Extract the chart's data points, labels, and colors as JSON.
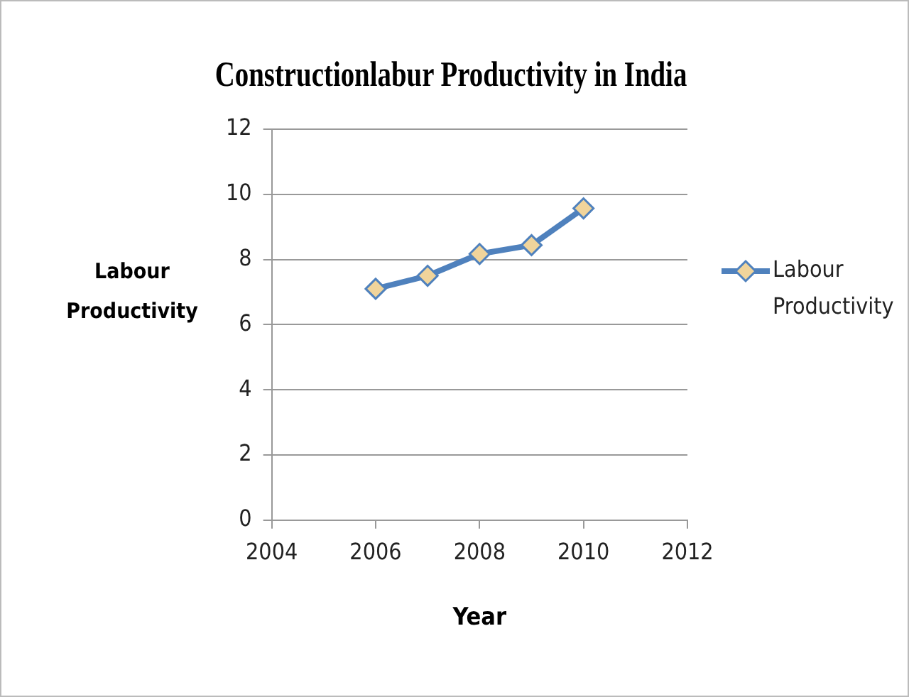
{
  "chart_data": {
    "type": "line",
    "title": "Constructionlabur Productivity in India",
    "xlabel": "Year",
    "ylabel": "Labour Productivity",
    "x": [
      2006,
      2007,
      2008,
      2009,
      2010
    ],
    "series": [
      {
        "name": "Labour Productivity",
        "color": "#4f81bd",
        "values": [
          7.1,
          7.5,
          8.17,
          8.44,
          9.57
        ]
      }
    ],
    "xlim": [
      2004,
      2012
    ],
    "xticks": [
      2004,
      2006,
      2008,
      2010,
      2012
    ],
    "ylim": [
      0,
      12
    ],
    "yticks": [
      0,
      2,
      4,
      6,
      8,
      10,
      12
    ],
    "grid": "y",
    "legend": "right",
    "marker": "diamond",
    "line_style": "solid"
  }
}
